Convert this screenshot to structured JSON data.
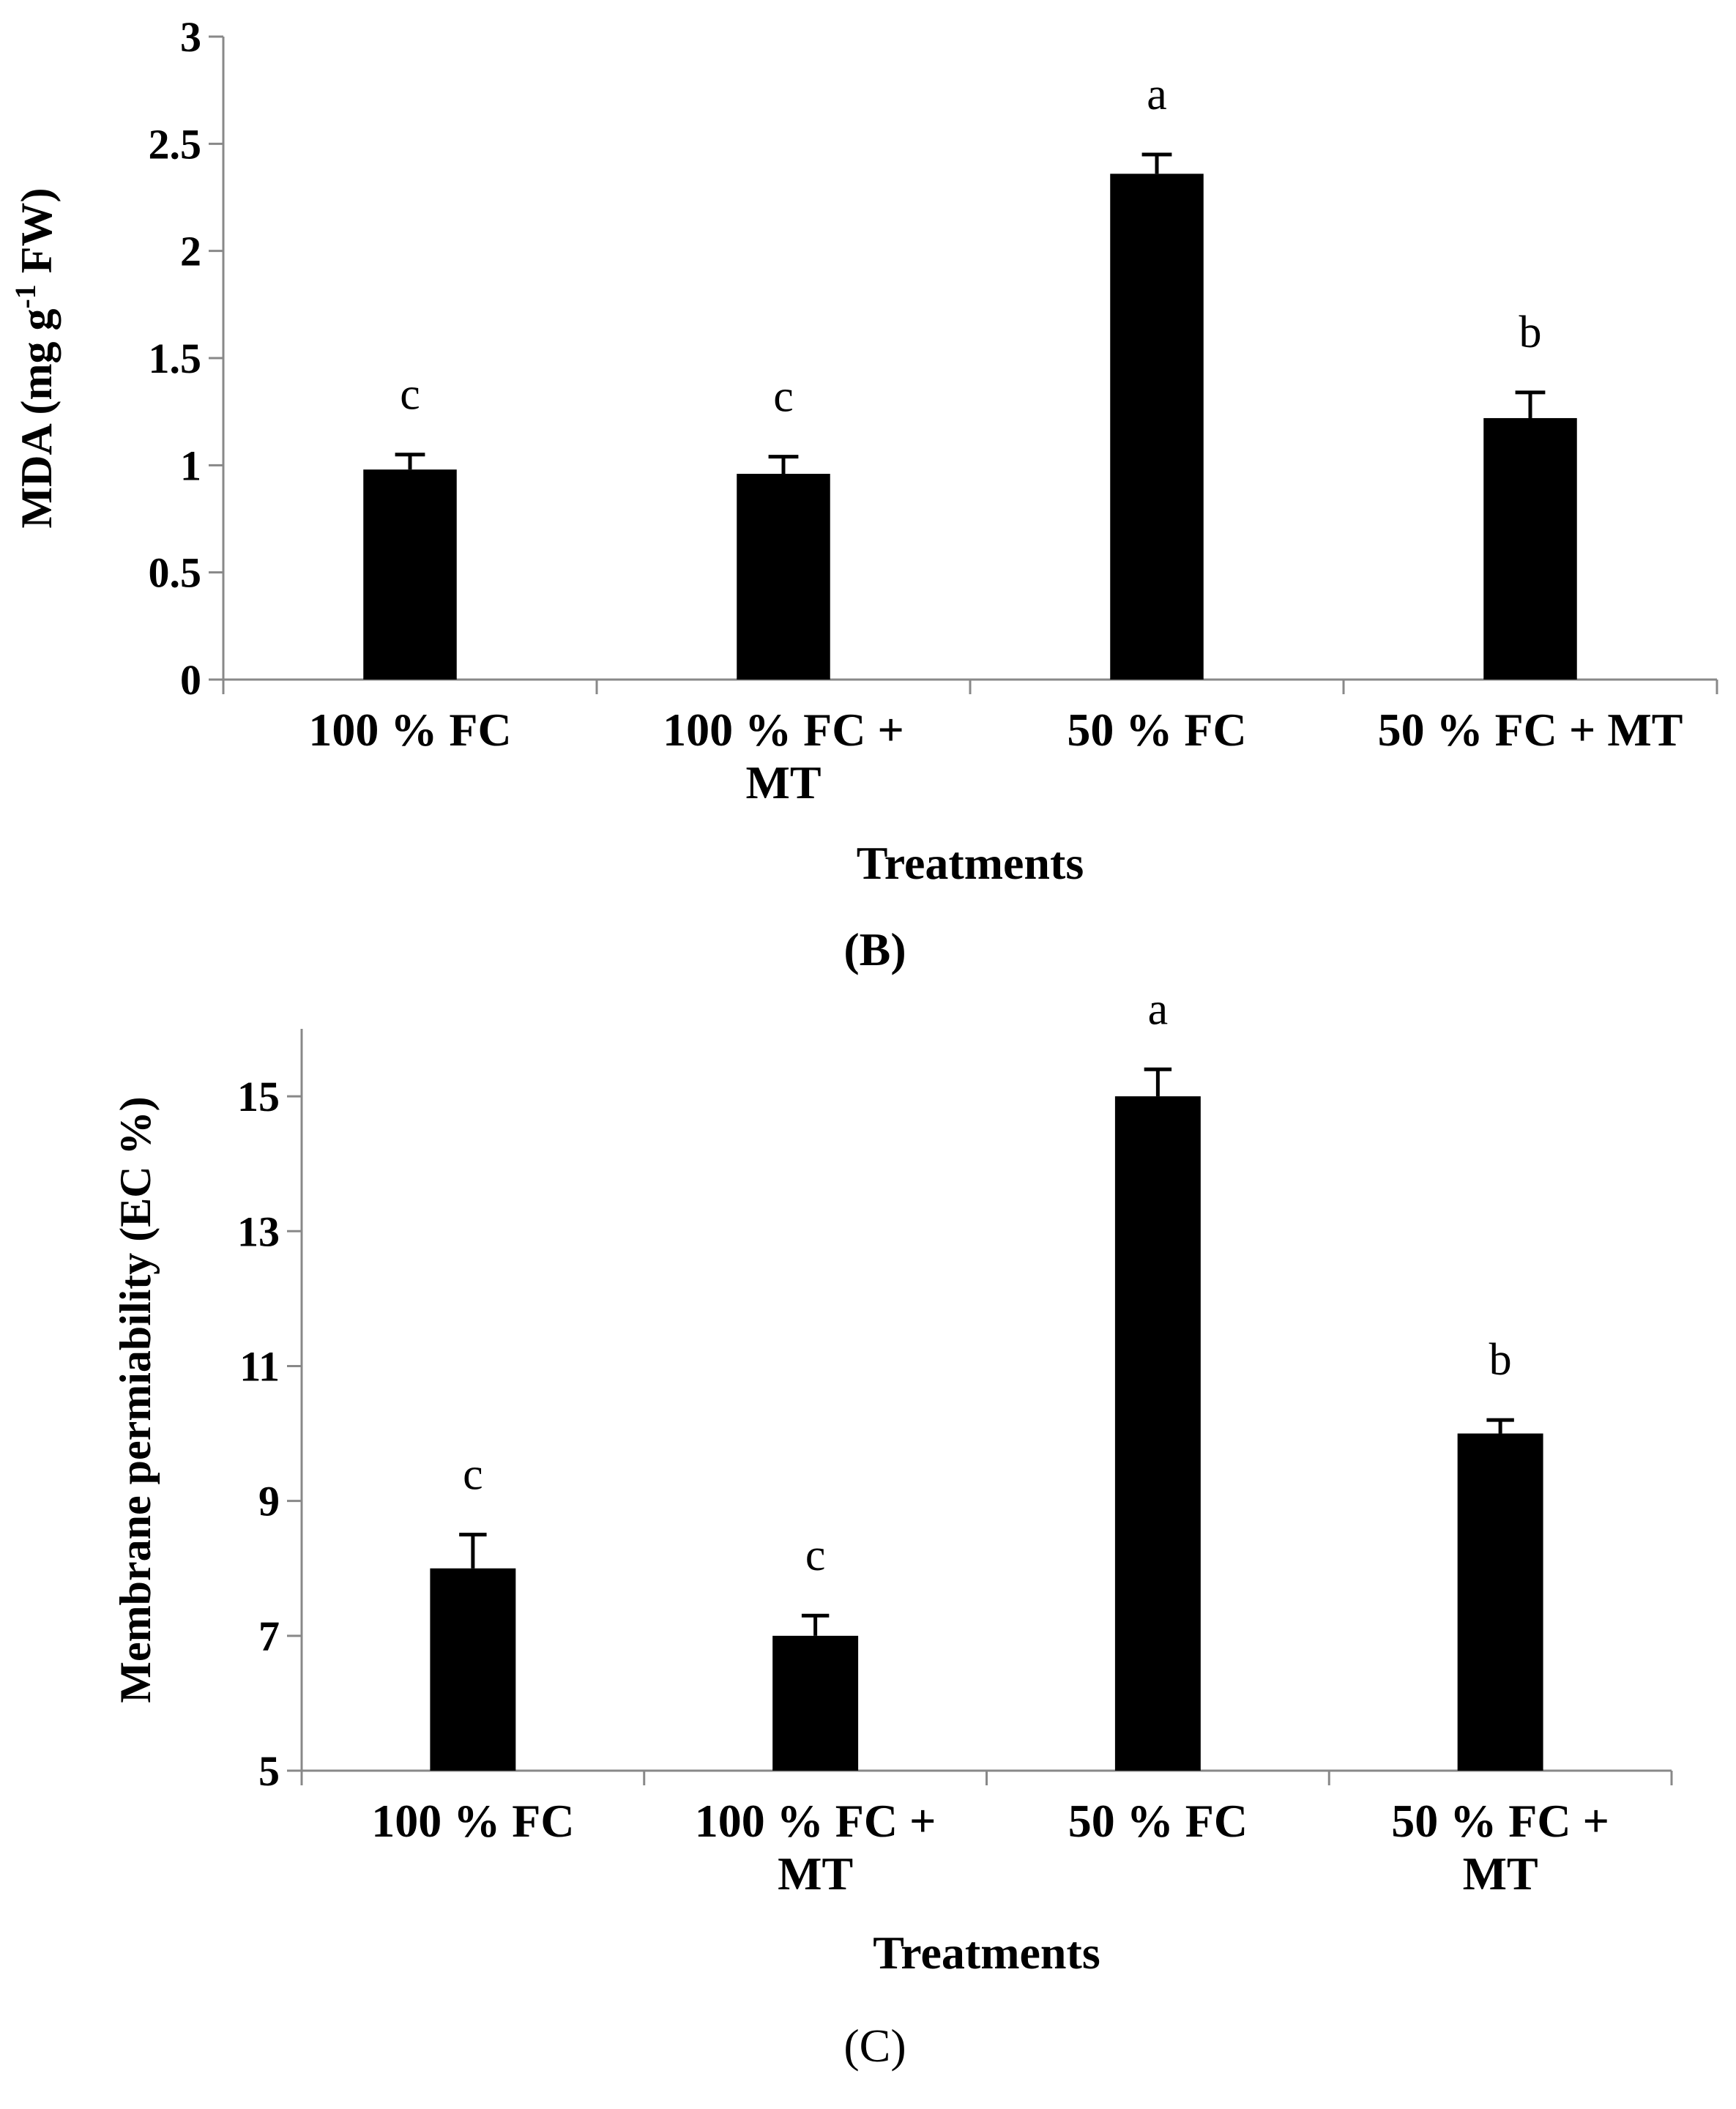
{
  "chart_data": [
    {
      "type": "bar",
      "panel_label": "(B)",
      "categories": [
        [
          "100 % FC"
        ],
        [
          "100 % FC +",
          "MT"
        ],
        [
          "50 % FC"
        ],
        [
          "50 % FC + MT"
        ]
      ],
      "values": [
        0.98,
        0.96,
        2.36,
        1.22
      ],
      "errors": [
        0.07,
        0.08,
        0.09,
        0.12
      ],
      "significance": [
        "c",
        "c",
        "a",
        "b"
      ],
      "xlabel": "Treatments",
      "ylabel": {
        "main": "MDA (mg g",
        "sup": "-1",
        "tail": " FW)"
      },
      "ylim": [
        0,
        3
      ],
      "yticks": [
        {
          "value": 0,
          "label": "0"
        },
        {
          "value": 0.5,
          "label": "0.5"
        },
        {
          "value": 1,
          "label": "1"
        },
        {
          "value": 1.5,
          "label": "1.5"
        },
        {
          "value": 2,
          "label": "2"
        },
        {
          "value": 2.5,
          "label": "2.5"
        },
        {
          "value": 3,
          "label": "3"
        }
      ],
      "bar_color": "#000000",
      "axis_color": "#888888"
    },
    {
      "type": "bar",
      "panel_label": "(C)",
      "categories": [
        [
          "100 % FC"
        ],
        [
          "100 % FC +",
          "MT"
        ],
        [
          "50 % FC"
        ],
        [
          "50 % FC +",
          "MT"
        ]
      ],
      "values": [
        8.0,
        7.0,
        15.0,
        10.0
      ],
      "errors": [
        0.5,
        0.3,
        0.4,
        0.2
      ],
      "significance": [
        "c",
        "c",
        "a",
        "b"
      ],
      "xlabel": "Treatments",
      "ylabel": {
        "main": "Membrane permiability (EC %)",
        "sup": "",
        "tail": ""
      },
      "ylim": [
        5,
        16
      ],
      "yticks": [
        {
          "value": 5,
          "label": "5"
        },
        {
          "value": 7,
          "label": "7"
        },
        {
          "value": 9,
          "label": "9"
        },
        {
          "value": 11,
          "label": "11"
        },
        {
          "value": 13,
          "label": "13"
        },
        {
          "value": 15,
          "label": "15"
        }
      ],
      "bar_color": "#000000",
      "axis_color": "#888888"
    }
  ]
}
